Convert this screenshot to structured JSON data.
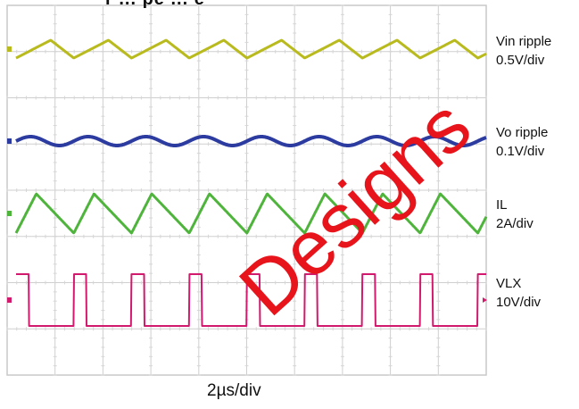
{
  "chart_data": {
    "type": "line",
    "grid": true,
    "x_divisions": 10,
    "y_divisions": 8,
    "x_scale_label": "2µs/div",
    "series": [
      {
        "name": "Vin ripple",
        "scale": "0.5V/div",
        "color": "#b8ba1e",
        "waveform": "triangle",
        "cycles": 8.3
      },
      {
        "name": "Vo ripple",
        "scale": "0.1V/div",
        "color": "#2c3b9f",
        "waveform": "sine",
        "cycles": 8.3
      },
      {
        "name": "IL",
        "scale": "2A/div",
        "color": "#4fb43c",
        "waveform": "sawtooth",
        "cycles": 8.3
      },
      {
        "name": "VLX",
        "scale": "10V/div",
        "color": "#d11a6e",
        "waveform": "square",
        "cycles": 8.3
      }
    ]
  },
  "labels": [
    {
      "line1": "Vin ripple",
      "line2": "0.5V/div"
    },
    {
      "line1": "Vo ripple",
      "line2": "0.1V/div"
    },
    {
      "line1": "IL",
      "line2": "2A/div"
    },
    {
      "line1": "VLX",
      "line2": "10V/div"
    }
  ],
  "timebase": "2µs/div",
  "watermark": "Designs",
  "header_fragment": "r     ...  pe   ...  e"
}
